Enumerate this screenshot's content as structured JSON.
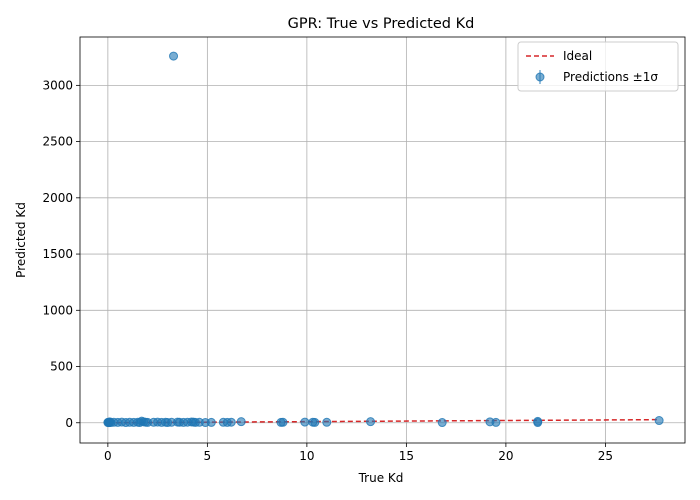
{
  "chart_data": {
    "type": "scatter",
    "title": "GPR: True vs Predicted Kd",
    "xlabel": "True Kd",
    "ylabel": "Predicted Kd",
    "xlim": [
      -1.4,
      29.0
    ],
    "ylim": [
      -180,
      3430
    ],
    "xticks": [
      0,
      5,
      10,
      15,
      20,
      25
    ],
    "yticks": [
      0,
      500,
      1000,
      1500,
      2000,
      2500,
      3000
    ],
    "grid": true,
    "legend_position": "top-right",
    "colors": {
      "points": "#1f77b4",
      "ideal": "#d62728"
    },
    "series": [
      {
        "name": "Ideal",
        "kind": "line",
        "x": [
          0,
          27.7
        ],
        "y": [
          0,
          27.7
        ]
      },
      {
        "name": "Predictions ±1σ",
        "kind": "scatter",
        "x": [
          0.0,
          0.02,
          0.05,
          0.08,
          0.1,
          0.15,
          0.3,
          0.5,
          0.7,
          0.9,
          1.1,
          1.3,
          1.5,
          1.6,
          1.7,
          1.8,
          1.9,
          2.0,
          2.3,
          2.5,
          2.7,
          2.9,
          3.0,
          3.2,
          3.3,
          3.5,
          3.6,
          3.8,
          4.0,
          4.2,
          4.3,
          4.4,
          4.6,
          4.9,
          5.2,
          5.8,
          6.0,
          6.2,
          6.7,
          8.7,
          8.8,
          9.9,
          10.3,
          10.4,
          11.0,
          13.2,
          16.8,
          19.2,
          19.5,
          21.6,
          21.6,
          27.7
        ],
        "y": [
          2,
          5,
          1,
          3,
          8,
          2,
          4,
          3,
          6,
          2,
          4,
          3,
          5,
          2,
          14,
          8,
          5,
          3,
          4,
          6,
          3,
          5,
          2,
          4,
          3260,
          6,
          4,
          3,
          5,
          7,
          6,
          3,
          4,
          2,
          3,
          4,
          3,
          5,
          10,
          3,
          4,
          6,
          5,
          3,
          4,
          10,
          2,
          8,
          3,
          12,
          2,
          20
        ]
      }
    ]
  }
}
